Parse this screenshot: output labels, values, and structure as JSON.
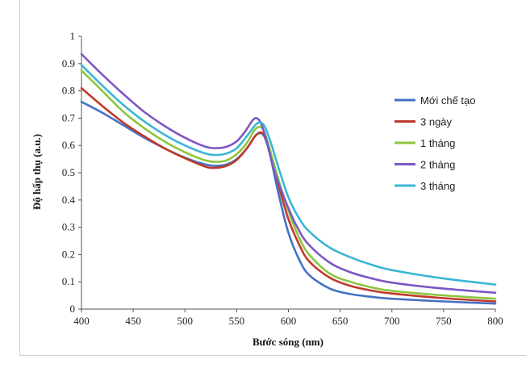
{
  "chart_data": {
    "type": "line",
    "title": "",
    "xlabel": "Bước sóng (nm)",
    "ylabel": "Độ hấp thụ (a.u.)",
    "xlim": [
      400,
      800
    ],
    "ylim": [
      0,
      1
    ],
    "xticks": [
      "400",
      "450",
      "500",
      "550",
      "600",
      "650",
      "700",
      "750",
      "800"
    ],
    "yticks": [
      "0",
      "0.1",
      "0.2",
      "0.3",
      "0.4",
      "0.5",
      "0.6",
      "0.7",
      "0.8",
      "0.9",
      "1"
    ],
    "grid": false,
    "legend": "right",
    "series": [
      {
        "name": "Mới chế tạo",
        "color": "#4472c4",
        "points": [
          [
            400,
            0.76
          ],
          [
            420,
            0.72
          ],
          [
            440,
            0.675
          ],
          [
            460,
            0.63
          ],
          [
            480,
            0.59
          ],
          [
            500,
            0.555
          ],
          [
            520,
            0.53
          ],
          [
            530,
            0.525
          ],
          [
            540,
            0.53
          ],
          [
            550,
            0.55
          ],
          [
            560,
            0.59
          ],
          [
            568,
            0.635
          ],
          [
            573,
            0.645
          ],
          [
            577,
            0.63
          ],
          [
            582,
            0.57
          ],
          [
            590,
            0.43
          ],
          [
            600,
            0.28
          ],
          [
            610,
            0.185
          ],
          [
            620,
            0.125
          ],
          [
            640,
            0.075
          ],
          [
            660,
            0.055
          ],
          [
            680,
            0.045
          ],
          [
            700,
            0.038
          ],
          [
            750,
            0.028
          ],
          [
            800,
            0.02
          ]
        ]
      },
      {
        "name": "3 ngày",
        "color": "#c0392b",
        "points": [
          [
            400,
            0.81
          ],
          [
            420,
            0.745
          ],
          [
            440,
            0.685
          ],
          [
            460,
            0.635
          ],
          [
            480,
            0.59
          ],
          [
            500,
            0.553
          ],
          [
            520,
            0.522
          ],
          [
            530,
            0.518
          ],
          [
            540,
            0.525
          ],
          [
            550,
            0.547
          ],
          [
            560,
            0.59
          ],
          [
            568,
            0.635
          ],
          [
            573,
            0.648
          ],
          [
            577,
            0.635
          ],
          [
            582,
            0.58
          ],
          [
            590,
            0.46
          ],
          [
            600,
            0.33
          ],
          [
            610,
            0.24
          ],
          [
            620,
            0.175
          ],
          [
            640,
            0.115
          ],
          [
            660,
            0.085
          ],
          [
            680,
            0.068
          ],
          [
            700,
            0.057
          ],
          [
            750,
            0.04
          ],
          [
            800,
            0.028
          ]
        ]
      },
      {
        "name": "1 tháng",
        "color": "#8cc63f",
        "points": [
          [
            400,
            0.875
          ],
          [
            420,
            0.8
          ],
          [
            440,
            0.725
          ],
          [
            460,
            0.665
          ],
          [
            480,
            0.615
          ],
          [
            500,
            0.575
          ],
          [
            520,
            0.545
          ],
          [
            530,
            0.54
          ],
          [
            540,
            0.545
          ],
          [
            550,
            0.568
          ],
          [
            560,
            0.61
          ],
          [
            567,
            0.655
          ],
          [
            572,
            0.668
          ],
          [
            576,
            0.655
          ],
          [
            581,
            0.6
          ],
          [
            590,
            0.48
          ],
          [
            600,
            0.36
          ],
          [
            610,
            0.265
          ],
          [
            620,
            0.2
          ],
          [
            640,
            0.13
          ],
          [
            660,
            0.1
          ],
          [
            680,
            0.08
          ],
          [
            700,
            0.067
          ],
          [
            750,
            0.05
          ],
          [
            800,
            0.038
          ]
        ]
      },
      {
        "name": "2 tháng",
        "color": "#7e57c2",
        "points": [
          [
            400,
            0.935
          ],
          [
            420,
            0.86
          ],
          [
            440,
            0.79
          ],
          [
            460,
            0.725
          ],
          [
            480,
            0.672
          ],
          [
            500,
            0.628
          ],
          [
            520,
            0.595
          ],
          [
            530,
            0.59
          ],
          [
            540,
            0.595
          ],
          [
            550,
            0.615
          ],
          [
            558,
            0.65
          ],
          [
            565,
            0.69
          ],
          [
            569,
            0.7
          ],
          [
            573,
            0.685
          ],
          [
            578,
            0.63
          ],
          [
            587,
            0.5
          ],
          [
            600,
            0.37
          ],
          [
            610,
            0.29
          ],
          [
            620,
            0.235
          ],
          [
            640,
            0.17
          ],
          [
            660,
            0.135
          ],
          [
            680,
            0.113
          ],
          [
            700,
            0.097
          ],
          [
            750,
            0.075
          ],
          [
            800,
            0.06
          ]
        ]
      },
      {
        "name": "3 tháng",
        "color": "#3bb6d4",
        "points": [
          [
            400,
            0.895
          ],
          [
            420,
            0.82
          ],
          [
            440,
            0.75
          ],
          [
            460,
            0.69
          ],
          [
            480,
            0.64
          ],
          [
            500,
            0.6
          ],
          [
            520,
            0.57
          ],
          [
            530,
            0.565
          ],
          [
            540,
            0.57
          ],
          [
            550,
            0.59
          ],
          [
            560,
            0.635
          ],
          [
            567,
            0.67
          ],
          [
            572,
            0.685
          ],
          [
            577,
            0.67
          ],
          [
            583,
            0.61
          ],
          [
            592,
            0.5
          ],
          [
            600,
            0.41
          ],
          [
            610,
            0.335
          ],
          [
            620,
            0.285
          ],
          [
            640,
            0.225
          ],
          [
            660,
            0.19
          ],
          [
            680,
            0.163
          ],
          [
            700,
            0.143
          ],
          [
            750,
            0.112
          ],
          [
            800,
            0.09
          ]
        ]
      }
    ]
  }
}
